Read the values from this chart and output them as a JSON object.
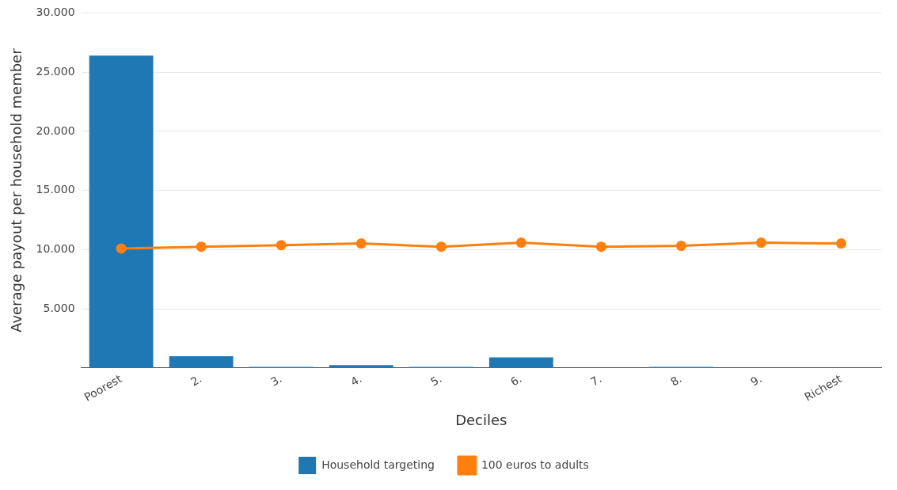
{
  "chart_data": {
    "type": "bar",
    "xlabel": "Deciles",
    "ylabel": "Average payout per household member",
    "categories": [
      "Poorest",
      "2.",
      "3.",
      "4.",
      "5.",
      "6.",
      "7.",
      "8.",
      "9.",
      "Richest"
    ],
    "series": [
      {
        "name": "Household targeting",
        "color": "#1f77b4",
        "values": [
          26400,
          1000,
          100,
          250,
          100,
          900,
          0,
          100,
          0,
          0
        ]
      },
      {
        "name": "100 euros to adults",
        "color": "#ff7f0e",
        "type": "line",
        "values": [
          10100,
          10250,
          10380,
          10520,
          10250,
          10590,
          10250,
          10320,
          10590,
          10520
        ]
      }
    ],
    "ylim": [
      0,
      30000
    ],
    "yticks": [
      {
        "value": 5000,
        "label": "5.000"
      },
      {
        "value": 10000,
        "label": "10.000"
      },
      {
        "value": 15000,
        "label": "15.000"
      },
      {
        "value": 20000,
        "label": "20.000"
      },
      {
        "value": 25000,
        "label": "25.000"
      },
      {
        "value": 30000,
        "label": "30.000"
      }
    ],
    "grid": "y",
    "legend": "bottom",
    "marker": "circle",
    "line_style": "solid"
  }
}
